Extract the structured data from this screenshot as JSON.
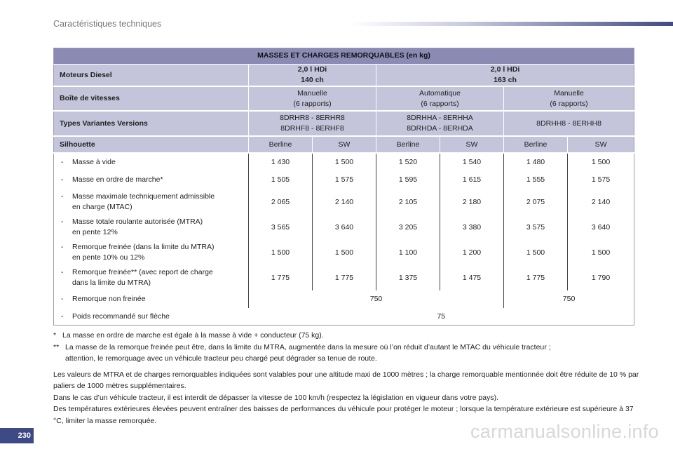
{
  "header": {
    "title": "Caractéristiques techniques"
  },
  "table": {
    "title": "MASSES ET CHARGES REMORQUABLES (en kg)",
    "engine_label": "Moteurs Diesel",
    "engines": [
      {
        "name": "2,0 l HDi",
        "power": "140 ch"
      },
      {
        "name": "2,0 l HDi",
        "power": "163 ch"
      }
    ],
    "gearbox_label": "Boîte de vitesses",
    "gearboxes": [
      {
        "line1": "Manuelle",
        "line2": "(6 rapports)"
      },
      {
        "line1": "Automatique",
        "line2": "(6 rapports)"
      },
      {
        "line1": "Manuelle",
        "line2": "(6 rapports)"
      }
    ],
    "variants_label": "Types Variantes Versions",
    "variants": [
      {
        "line1": "8DRHR8 - 8ERHR8",
        "line2": "8DRHF8 - 8ERHF8"
      },
      {
        "line1": "8DRHHA - 8ERHHA",
        "line2": "8DRHDA - 8ERHDA"
      },
      {
        "line1": "8DRHH8 - 8ERHH8",
        "line2": ""
      }
    ],
    "silhouette_label": "Silhouette",
    "silhouettes": [
      "Berline",
      "SW",
      "Berline",
      "SW",
      "Berline",
      "SW"
    ],
    "rows": [
      {
        "dash": "-",
        "line1": "Masse à vide",
        "line2": "",
        "values": [
          "1 430",
          "1 500",
          "1 520",
          "1 540",
          "1 480",
          "1 500"
        ]
      },
      {
        "dash": "-",
        "line1": "Masse en ordre de marche*",
        "line2": "",
        "values": [
          "1 505",
          "1 575",
          "1 595",
          "1 615",
          "1 555",
          "1 575"
        ]
      },
      {
        "dash": "-",
        "line1": "Masse maximale techniquement admissible",
        "line2": "en charge (MTAC)",
        "values": [
          "2 065",
          "2 140",
          "2 105",
          "2 180",
          "2 075",
          "2 140"
        ]
      },
      {
        "dash": "-",
        "line1": "Masse totale roulante autorisée (MTRA)",
        "line2": "en pente 12%",
        "values": [
          "3 565",
          "3 640",
          "3 205",
          "3 380",
          "3 575",
          "3 640"
        ]
      },
      {
        "dash": "-",
        "line1": "Remorque freinée (dans la limite du MTRA)",
        "line2": "en pente 10% ou 12%",
        "values": [
          "1 500",
          "1 500",
          "1 100",
          "1 200",
          "1 500",
          "1 500"
        ]
      },
      {
        "dash": "-",
        "line1": "Remorque freinée** (avec report de charge",
        "line2": "dans la limite du MTRA)",
        "values": [
          "1 775",
          "1 775",
          "1 375",
          "1 475",
          "1 775",
          "1 790"
        ]
      }
    ],
    "unbraked": {
      "dash": "-",
      "label": "Remorque non freinée",
      "value_a": "750",
      "value_b": "750"
    },
    "nose": {
      "dash": "-",
      "label": "Poids recommandé sur flèche",
      "value": "75"
    }
  },
  "notes": {
    "fn1_mark": "*",
    "fn1": "La masse en ordre de marche est égale à la masse à vide + conducteur (75 kg).",
    "fn2_mark": "**",
    "fn2_line1": "La masse de la remorque freinée peut être, dans la limite du MTRA, augmentée dans la mesure où l’on réduit d’autant le MTAC du véhicule tracteur ;",
    "fn2_line2": "attention, le remorquage avec un véhicule tracteur peu chargé peut dégrader sa tenue de route.",
    "para1": "Les valeurs de MTRA et de charges remorquables indiquées sont valables pour une altitude maxi de 1000 mètres ; la charge remorquable mentionnée doit être réduite de 10 % par paliers de 1000 mètres supplémentaires.",
    "para2": "Dans le cas d’un véhicule tracteur, il est interdit de dépasser la vitesse de 100 km/h (respectez la législation en vigueur dans votre pays).",
    "para3": "Des températures extérieures élevées peuvent entraîner des baisses de performances du véhicule pour protéger le moteur ; lorsque la température extérieure est supérieure à 37 °C, limiter la masse remorquée."
  },
  "page_number": "230",
  "watermark": "carmanualsonline.info"
}
